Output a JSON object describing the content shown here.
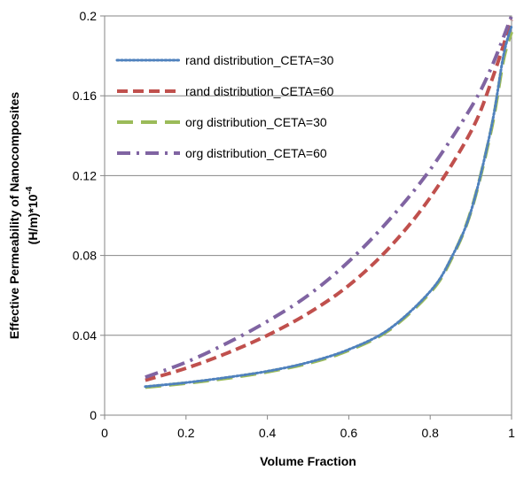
{
  "chart_data": {
    "type": "line",
    "title": "",
    "xlabel": "Volume Fraction",
    "ylabel_line1": "Effective Permeability of Nanocomposites",
    "ylabel_line2": "(H/m)*10",
    "ylabel_exponent": "-4",
    "xlim": [
      0,
      1
    ],
    "ylim": [
      0,
      0.2
    ],
    "x_ticks": [
      0,
      0.2,
      0.4,
      0.6,
      0.8,
      1
    ],
    "x_tick_labels": [
      "0",
      "0.2",
      "0.4",
      "0.6",
      "0.8",
      "1"
    ],
    "y_ticks": [
      0,
      0.04,
      0.08,
      0.12,
      0.16,
      0.2
    ],
    "y_tick_labels": [
      "0",
      "0.04",
      "0.08",
      "0.12",
      "0.16",
      "0.2"
    ],
    "grid": "horizontal",
    "legend_position": "top-left",
    "series": [
      {
        "name": "rand distribution_CETA=30",
        "color": "#4f81bd",
        "dash": "dotted",
        "x": [
          0.1,
          0.2,
          0.3,
          0.4,
          0.5,
          0.6,
          0.7,
          0.8,
          0.85,
          0.9,
          0.95,
          0.98,
          1.0
        ],
        "y": [
          0.0143,
          0.0163,
          0.0189,
          0.022,
          0.0264,
          0.0329,
          0.0432,
          0.062,
          0.078,
          0.102,
          0.144,
          0.18,
          0.195
        ]
      },
      {
        "name": "rand distribution_CETA=60",
        "color": "#c0504d",
        "dash": "dashed",
        "x": [
          0.1,
          0.2,
          0.3,
          0.4,
          0.5,
          0.6,
          0.7,
          0.8,
          0.9,
          0.95,
          1.0
        ],
        "y": [
          0.0175,
          0.0235,
          0.031,
          0.04,
          0.051,
          0.065,
          0.084,
          0.109,
          0.142,
          0.167,
          0.198
        ]
      },
      {
        "name": "org distribution_CETA=30",
        "color": "#9bbb59",
        "dash": "longdash",
        "x": [
          0.1,
          0.2,
          0.3,
          0.4,
          0.5,
          0.6,
          0.7,
          0.8,
          0.85,
          0.9,
          0.95,
          0.98,
          1.0
        ],
        "y": [
          0.014,
          0.016,
          0.0185,
          0.0217,
          0.026,
          0.0325,
          0.0428,
          0.0615,
          0.0775,
          0.102,
          0.143,
          0.178,
          0.192
        ]
      },
      {
        "name": "org distribution_CETA=60",
        "color": "#8064a2",
        "dash": "dashdot",
        "x": [
          0.1,
          0.2,
          0.3,
          0.4,
          0.5,
          0.6,
          0.7,
          0.8,
          0.9,
          0.95,
          1.0
        ],
        "y": [
          0.019,
          0.0265,
          0.036,
          0.047,
          0.06,
          0.077,
          0.098,
          0.123,
          0.154,
          0.174,
          0.2
        ]
      }
    ]
  }
}
